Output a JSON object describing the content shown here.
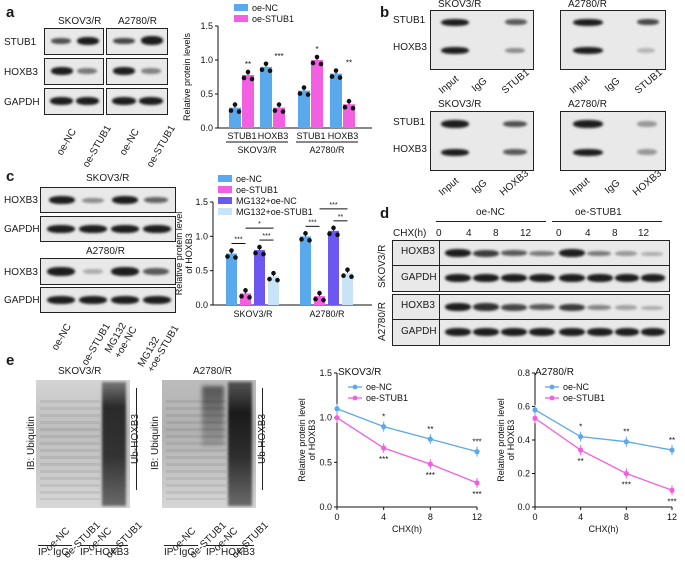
{
  "panels": {
    "a": "a",
    "b": "b",
    "c": "c",
    "d": "d",
    "e": "e"
  },
  "a": {
    "cell_lines": [
      "SKOV3/R",
      "A2780/R"
    ],
    "rows": [
      "STUB1",
      "HOXB3",
      "GAPDH"
    ],
    "lanes": [
      "oe-NC",
      "oe-STUB1",
      "oe-NC",
      "oe-STUB1"
    ]
  },
  "b": {
    "titles": [
      "SKOV3/R",
      "A2780/R",
      "SKOV3/R",
      "A2780/R"
    ],
    "rows_top": [
      "STUB1",
      "HOXB3"
    ],
    "rows_bottom": [
      "STUB1",
      "HOXB3"
    ],
    "lanes_top": [
      "Input",
      "IgG",
      "STUB1"
    ],
    "lanes_bottom": [
      "Input",
      "IgG",
      "HOXB3"
    ]
  },
  "c": {
    "cell_lines": [
      "SKOV3/R",
      "A2780/R"
    ],
    "rows": [
      "HOXB3",
      "GAPDH"
    ],
    "lanes": [
      "oe-NC",
      "oe-STUB1",
      "MG132\n+oe-NC",
      "MG132\n+oe-STUB1"
    ]
  },
  "d": {
    "treat": [
      "oe-NC",
      "oe-STUB1"
    ],
    "chx_label": "CHX(h)",
    "times": [
      "0",
      "4",
      "8",
      "12",
      "0",
      "4",
      "8",
      "12"
    ],
    "cell_lines": [
      "SKOV3/R",
      "A2780/R"
    ],
    "rows": [
      "HOXB3",
      "GAPDH"
    ]
  },
  "e": {
    "blot_titles": [
      "SKOV3/R",
      "A2780/R"
    ],
    "ib_label": "IB: Ubiquitin",
    "ub_label": "Ub-HOXB3",
    "lanes": [
      "oe-NC",
      "oe-STUB1",
      "oe-NC",
      "oe-STUB1"
    ],
    "ip": [
      "IP: IgG",
      "IP: HOXB3"
    ]
  },
  "chart_data": [
    {
      "type": "bar",
      "ylabel": "Relative protein levels",
      "ylim": [
        0,
        1.5
      ],
      "yticks": [
        "0.0",
        "0.5",
        "1.0",
        "1.5"
      ],
      "categories": [
        "STUB1",
        "HOXB3",
        "STUB1",
        "HOXB3"
      ],
      "groups": [
        "SKOV3/R",
        "A2780/R"
      ],
      "legend": [
        "oe-NC",
        "oe-STUB1"
      ],
      "colors": [
        "#5aa9ec",
        "#f25fe0"
      ],
      "series": [
        {
          "name": "oe-NC",
          "values": [
            0.3,
            0.9,
            0.55,
            0.8
          ]
        },
        {
          "name": "oe-STUB1",
          "values": [
            0.78,
            0.3,
            1.0,
            0.35
          ]
        }
      ],
      "significance": [
        "**",
        "***",
        "*",
        "**"
      ]
    },
    {
      "type": "bar",
      "ylabel": "Relative protein level of HOXB3",
      "ylim": [
        0,
        1.5
      ],
      "yticks": [
        "0.0",
        "0.5",
        "1.0",
        "1.5"
      ],
      "categories": [
        "SKOV3/R",
        "A2780/R"
      ],
      "legend": [
        "oe-NC",
        "oe-STUB1",
        "MG132+oe-NC",
        "MG132+oe-STUB1"
      ],
      "colors": [
        "#5aa9ec",
        "#f25fe0",
        "#6c57f0",
        "#c9e3f6"
      ],
      "series": [
        {
          "name": "oe-NC",
          "values": [
            0.75,
            1.0
          ]
        },
        {
          "name": "oe-STUB1",
          "values": [
            0.17,
            0.13
          ]
        },
        {
          "name": "MG132+oe-NC",
          "values": [
            0.8,
            1.08
          ]
        },
        {
          "name": "MG132+oe-STUB1",
          "values": [
            0.42,
            0.47
          ]
        }
      ],
      "significance": [
        "***",
        "***",
        "*",
        "***",
        "***",
        "**",
        "***",
        "***"
      ]
    },
    {
      "type": "line",
      "title": "SKOV3/R",
      "xlabel": "CHX(h)",
      "ylabel": "Relative protein level of HOXB3",
      "x": [
        0,
        4,
        8,
        12
      ],
      "ylim": [
        0,
        1.5
      ],
      "yticks": [
        "0.0",
        "0.5",
        "1.0",
        "1.5"
      ],
      "colors": [
        "#5aa9ec",
        "#f25fe0"
      ],
      "series": [
        {
          "name": "oe-NC",
          "values": [
            1.1,
            0.9,
            0.76,
            0.62
          ]
        },
        {
          "name": "oe-STUB1",
          "values": [
            1.0,
            0.66,
            0.48,
            0.27
          ]
        }
      ],
      "significance_top": [
        "*",
        "**",
        "***"
      ],
      "significance_bottom": [
        "***",
        "***",
        "***"
      ]
    },
    {
      "type": "line",
      "title": "A2780/R",
      "xlabel": "CHX(h)",
      "ylabel": "Relative protein level of HOXB3",
      "x": [
        0,
        4,
        8,
        12
      ],
      "ylim": [
        0,
        0.8
      ],
      "yticks": [
        "0.0",
        "0.2",
        "0.4",
        "0.6",
        "0.8"
      ],
      "colors": [
        "#5aa9ec",
        "#f25fe0"
      ],
      "series": [
        {
          "name": "oe-NC",
          "values": [
            0.58,
            0.42,
            0.39,
            0.34
          ]
        },
        {
          "name": "oe-STUB1",
          "values": [
            0.53,
            0.34,
            0.2,
            0.1
          ]
        }
      ],
      "significance_top": [
        "*",
        "**",
        "**"
      ],
      "significance_bottom": [
        "**",
        "***",
        "***"
      ]
    }
  ]
}
